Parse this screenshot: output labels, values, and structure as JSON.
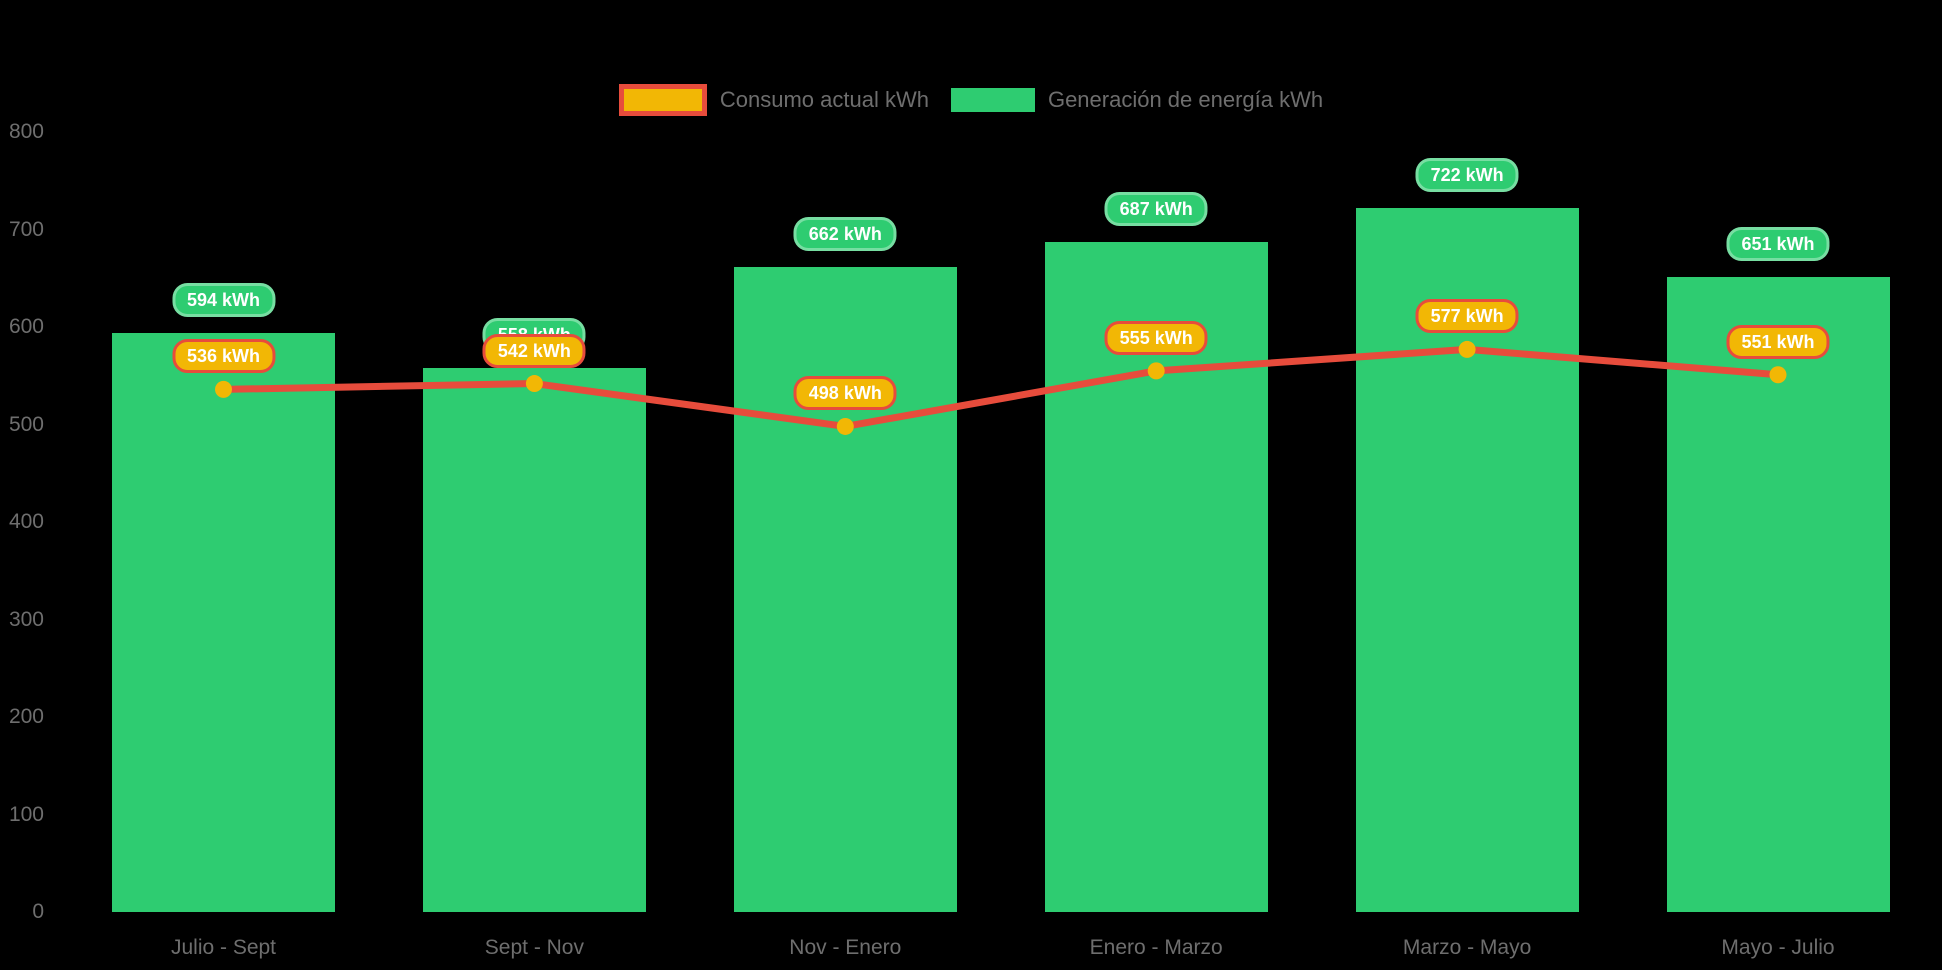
{
  "background": "#000000",
  "colors": {
    "bar_green": "#2ECC71",
    "line_red": "#E74C3C",
    "marker_gold": "#F2B705",
    "axis_text": "#6E6E6E",
    "pill_text": "#FFFFFF"
  },
  "chart_data": {
    "type": "combo-bar-line",
    "categories": [
      "Julio - Sept",
      "Sept - Nov",
      "Nov - Enero",
      "Enero - Marzo",
      "Marzo - Mayo",
      "Mayo - Julio"
    ],
    "series": [
      {
        "name": "Consumo actual kWh",
        "type": "line",
        "color": "#E74C3C",
        "marker_color": "#F2B705",
        "values": [
          536,
          542,
          498,
          555,
          577,
          551
        ]
      },
      {
        "name": "Generación de energía kWh",
        "type": "bar",
        "color": "#2ECC71",
        "values": [
          594,
          558,
          662,
          687,
          722,
          651
        ]
      }
    ],
    "unit": "kWh",
    "ylim": [
      0,
      800
    ],
    "y_ticks": [
      0,
      100,
      200,
      300,
      400,
      500,
      600,
      700,
      800
    ],
    "xlabel": "",
    "ylabel": "",
    "grid": false,
    "legend_position": "top-center",
    "data_labels": true
  }
}
